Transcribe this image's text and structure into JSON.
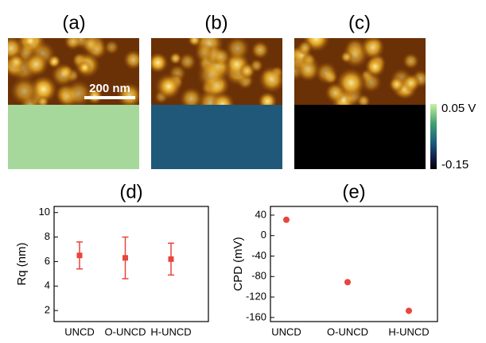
{
  "panels": [
    {
      "label": "(a)"
    },
    {
      "label": "(b)"
    },
    {
      "label": "(c)"
    }
  ],
  "scale_bar": "200 nm",
  "colorbar": {
    "max_label": "0.05 V",
    "min_label": "-0.15"
  },
  "chart_data": [
    {
      "type": "errorbar",
      "title": "(d)",
      "ylabel": "Rq (nm)",
      "categories": [
        "UNCD",
        "O-UNCD",
        "H-UNCD"
      ],
      "values": [
        6.5,
        6.3,
        6.2
      ],
      "errors": [
        1.1,
        1.7,
        1.3
      ],
      "color": "#e8453c",
      "ylim": [
        1.1,
        10.5
      ],
      "yticks": [
        2,
        4,
        6,
        8,
        10
      ]
    },
    {
      "type": "scatter",
      "title": "(e)",
      "ylabel": "CPD (mV)",
      "categories": [
        "UNCD",
        "O-UNCD",
        "H-UNCD"
      ],
      "values": [
        31,
        -91,
        -147
      ],
      "color": "#e8453c",
      "ylim": [
        -168,
        57
      ],
      "yticks": [
        40,
        0,
        -40,
        -80,
        -120,
        -160
      ]
    }
  ]
}
